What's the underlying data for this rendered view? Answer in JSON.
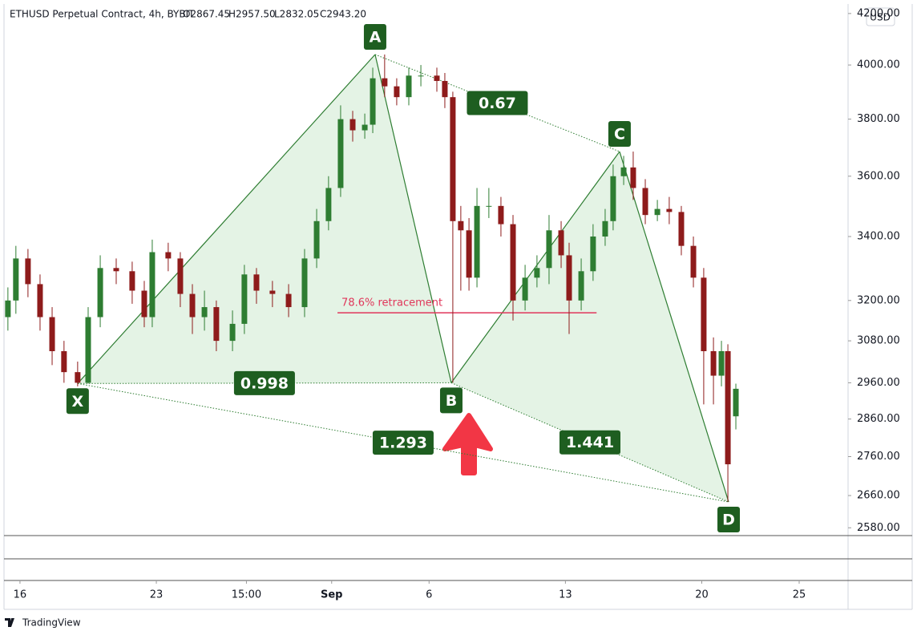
{
  "chart_data": {
    "type": "candlestick",
    "header": {
      "symbol": "ETHUSD Perpetual Contract, 4h, BYBIT",
      "ohlc": [
        "O2867.45",
        "H2957.50",
        "L2832.05",
        "C2943.20"
      ]
    },
    "currency": "USD",
    "brand": "TradingView",
    "log_scale": true,
    "grid": false,
    "colors": {
      "up": "#2e7d32",
      "down": "#8e1b1b",
      "pattern": "#2e7d32",
      "pattern_fill": "#4caf50",
      "label_box": "#1e5e20",
      "retracement": "#e0365a",
      "arrow": "#f23645"
    },
    "xlim": [
      -0.82,
      42.51
    ],
    "ylim": [
      2561,
      4238
    ],
    "xticks": [
      {
        "value": 0,
        "label": "16"
      },
      {
        "value": 7,
        "label": "23"
      },
      {
        "value": 11.625,
        "label": "15:00"
      },
      {
        "value": 16,
        "label": "Sep"
      },
      {
        "value": 21,
        "label": "6"
      },
      {
        "value": 28,
        "label": "13"
      },
      {
        "value": 35,
        "label": "20"
      },
      {
        "value": 40,
        "label": "25"
      }
    ],
    "yticks": [
      {
        "value": 4200,
        "label": "4200.00"
      },
      {
        "value": 4000,
        "label": "4000.00"
      },
      {
        "value": 3800,
        "label": "3800.00"
      },
      {
        "value": 3600,
        "label": "3600.00"
      },
      {
        "value": 3400,
        "label": "3400.00"
      },
      {
        "value": 3200,
        "label": "3200.00"
      },
      {
        "value": 3080,
        "label": "3080.00"
      },
      {
        "value": 2960,
        "label": "2960.00"
      },
      {
        "value": 2860,
        "label": "2860.00"
      },
      {
        "value": 2760,
        "label": "2760.00"
      },
      {
        "value": 2660,
        "label": "2660.00"
      },
      {
        "value": 2580,
        "label": "2580.00"
      }
    ],
    "x": [
      -0.62,
      -0.21,
      0.41,
      1.03,
      1.65,
      2.26,
      2.96,
      3.5,
      4.12,
      4.94,
      5.76,
      6.38,
      6.79,
      7.61,
      8.23,
      8.85,
      9.47,
      10.08,
      10.91,
      11.52,
      12.14,
      12.96,
      13.79,
      14.61,
      15.23,
      15.84,
      16.46,
      17.08,
      17.7,
      18.11,
      18.72,
      19.34,
      19.96,
      20.58,
      21.4,
      21.81,
      22.22,
      22.63,
      23.05,
      23.46,
      24.07,
      24.69,
      25.31,
      25.93,
      26.54,
      27.16,
      27.78,
      28.19,
      28.81,
      29.42,
      30.04,
      30.45,
      30.99,
      31.48,
      32.1,
      32.72,
      33.33,
      33.95,
      34.57,
      35.1,
      35.6,
      36.01,
      36.34,
      36.75
    ],
    "open": [
      3150,
      3200,
      3330,
      3250,
      3150,
      3050,
      2990,
      2960,
      3150,
      3300,
      3290,
      3230,
      3150,
      3350,
      3330,
      3220,
      3150,
      3180,
      3080,
      3130,
      3280,
      3230,
      3220,
      3180,
      3330,
      3450,
      3560,
      3800,
      3760,
      3780,
      3950,
      3920,
      3880,
      3960,
      3960,
      3940,
      3880,
      3450,
      3420,
      3270,
      3500,
      3500,
      3440,
      3200,
      3270,
      3300,
      3420,
      3340,
      3200,
      3290,
      3400,
      3450,
      3600,
      3630,
      3560,
      3470,
      3490,
      3480,
      3370,
      3270,
      3050,
      2980,
      3050,
      2867.45
    ],
    "high": [
      3240,
      3370,
      3360,
      3280,
      3180,
      3080,
      3020,
      3180,
      3340,
      3330,
      3320,
      3260,
      3390,
      3380,
      3350,
      3250,
      3230,
      3200,
      3170,
      3310,
      3300,
      3260,
      3250,
      3360,
      3490,
      3600,
      3850,
      3830,
      3820,
      3990,
      4040,
      3950,
      3990,
      4000,
      3990,
      3970,
      3900,
      3500,
      3460,
      3560,
      3560,
      3530,
      3470,
      3310,
      3340,
      3470,
      3450,
      3380,
      3330,
      3440,
      3490,
      3640,
      3670,
      3685,
      3590,
      3520,
      3530,
      3500,
      3400,
      3300,
      3090,
      3080,
      3070,
      2957.5
    ],
    "low": [
      3110,
      3160,
      3210,
      3110,
      3010,
      2960,
      2950,
      2958,
      3120,
      3250,
      3190,
      3120,
      3120,
      3290,
      3180,
      3100,
      3110,
      3050,
      3050,
      3100,
      3190,
      3180,
      3150,
      3150,
      3300,
      3420,
      3530,
      3720,
      3730,
      3750,
      3880,
      3850,
      3850,
      3920,
      3900,
      3840,
      2960,
      3230,
      3230,
      3240,
      3460,
      3400,
      3140,
      3170,
      3240,
      3250,
      3300,
      3100,
      3170,
      3260,
      3370,
      3420,
      3570,
      3520,
      3440,
      3450,
      3440,
      3340,
      3240,
      2900,
      2900,
      2950,
      2644,
      2832.05
    ],
    "close": [
      3200,
      3330,
      3250,
      3150,
      3050,
      2990,
      2960,
      3150,
      3300,
      3290,
      3230,
      3150,
      3350,
      3330,
      3220,
      3150,
      3180,
      3080,
      3130,
      3280,
      3230,
      3220,
      3180,
      3330,
      3450,
      3560,
      3800,
      3760,
      3780,
      3950,
      3920,
      3880,
      3960,
      3960,
      3940,
      3880,
      3450,
      3420,
      3270,
      3500,
      3500,
      3440,
      3200,
      3270,
      3300,
      3420,
      3340,
      3200,
      3290,
      3400,
      3450,
      3600,
      3630,
      3560,
      3470,
      3490,
      3480,
      3370,
      3270,
      3050,
      2980,
      3050,
      2740,
      2943.2
    ],
    "pattern": {
      "points": [
        {
          "label": "X",
          "x": 2.96,
          "y": 2958
        },
        {
          "label": "A",
          "x": 18.23,
          "y": 4040
        },
        {
          "label": "B",
          "x": 22.14,
          "y": 2960
        },
        {
          "label": "C",
          "x": 30.78,
          "y": 3685
        },
        {
          "label": "D",
          "x": 36.38,
          "y": 2644
        }
      ],
      "ratios": [
        0.998,
        0.67,
        1.293,
        1.441
      ]
    },
    "retracement": {
      "label": "78.6% retracement",
      "y": 3163,
      "x": [
        16.3,
        29.6
      ]
    }
  }
}
